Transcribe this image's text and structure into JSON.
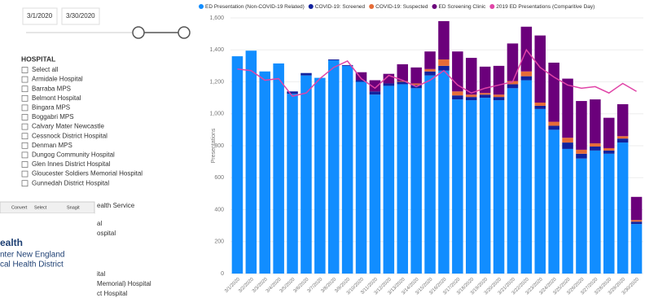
{
  "filter_panel": {
    "date_start": "3/1/2020",
    "date_end": "3/30/2020",
    "title": "HOSPITAL",
    "items": [
      "Select all",
      "Armidale Hospital",
      "Barraba MPS",
      "Belmont Hospital",
      "Bingara MPS",
      "Boggabri MPS",
      "Calvary Mater Newcastle",
      "Cessnock District Hospital",
      "Denman MPS",
      "Dungog Community Hospital",
      "Glen Innes District Hospital",
      "Gloucester Soldiers Memorial Hospital",
      "Gunnedah District Hospital"
    ]
  },
  "overlay": {
    "toolbar": [
      "Convert",
      "Select",
      "Snagit"
    ],
    "logo": [
      "ealth",
      "nter New England",
      "cal Health District"
    ],
    "fragments": [
      "ealth Service",
      "al",
      "ospital",
      "ital",
      "Memorial) Hospital",
      "ct Hospital"
    ]
  },
  "chart_data": {
    "type": "bar",
    "stacked": true,
    "ylabel": "Presentations",
    "categories": [
      "3/1/2020",
      "3/2/2020",
      "3/3/2020",
      "3/4/2020",
      "3/5/2020",
      "3/6/2020",
      "3/7/2020",
      "3/8/2020",
      "3/9/2020",
      "3/10/2020",
      "3/11/2020",
      "3/12/2020",
      "3/13/2020",
      "3/14/2020",
      "3/15/2020",
      "3/16/2020",
      "3/17/2020",
      "3/18/2020",
      "3/19/2020",
      "3/20/2020",
      "3/21/2020",
      "3/22/2020",
      "3/23/2020",
      "3/24/2020",
      "3/25/2020",
      "3/26/2020",
      "3/27/2020",
      "3/28/2020",
      "3/29/2020",
      "3/30/2020"
    ],
    "series": [
      {
        "name": "ED Presentation (Non-COVID-19 Related)",
        "color": "#118dff",
        "values": [
          1360,
          1395,
          1265,
          1315,
          1125,
          1240,
          1225,
          1335,
          1300,
          1200,
          1120,
          1175,
          1185,
          1160,
          1240,
          1270,
          1090,
          1085,
          1100,
          1085,
          1160,
          1210,
          1030,
          900,
          780,
          720,
          770,
          750,
          820,
          310
        ]
      },
      {
        "name": "COVID-19: Screened",
        "color": "#12239e",
        "values": [
          0,
          0,
          0,
          0,
          15,
          15,
          0,
          5,
          5,
          10,
          20,
          15,
          15,
          20,
          25,
          30,
          25,
          20,
          20,
          20,
          25,
          25,
          20,
          25,
          40,
          30,
          25,
          20,
          25,
          15
        ]
      },
      {
        "name": "COVID-19: Suspected",
        "color": "#e66c37",
        "values": [
          0,
          0,
          0,
          0,
          0,
          0,
          0,
          0,
          0,
          0,
          0,
          0,
          5,
          10,
          15,
          40,
          25,
          15,
          10,
          15,
          20,
          30,
          20,
          25,
          30,
          25,
          20,
          15,
          15,
          10
        ]
      },
      {
        "name": "ED Screening Clinic",
        "color": "#6b007b",
        "values": [
          0,
          0,
          0,
          0,
          0,
          0,
          0,
          0,
          0,
          50,
          70,
          60,
          105,
          100,
          110,
          240,
          250,
          230,
          165,
          180,
          235,
          280,
          420,
          370,
          370,
          305,
          275,
          190,
          200,
          145
        ]
      },
      {
        "name": "2019 ED Presentations (Comparitive Day)",
        "color": "#e044a7",
        "type": "line",
        "values": [
          1280,
          1270,
          1210,
          1220,
          1110,
          1130,
          1220,
          1290,
          1330,
          1220,
          1160,
          1240,
          1210,
          1170,
          1210,
          1270,
          1180,
          1130,
          1160,
          1180,
          1200,
          1400,
          1290,
          1230,
          1180,
          1160,
          1170,
          1130,
          1190,
          1140
        ]
      }
    ],
    "ylim": [
      0,
      1600
    ],
    "yticks": [
      0,
      200,
      400,
      600,
      800,
      {
        "value": 1000,
        "label": "1,000"
      },
      {
        "value": 1200,
        "label": "1,200"
      },
      {
        "value": 1400,
        "label": "1,400"
      },
      {
        "value": 1600,
        "label": "1,600"
      }
    ],
    "grid": true,
    "legend": "top"
  }
}
